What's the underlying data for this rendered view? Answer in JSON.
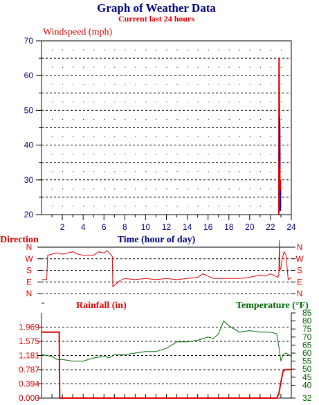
{
  "page": {
    "title": "Graph of Weather Data",
    "subtitle": "Current last 24 hours"
  },
  "colors": {
    "navy": "#000080",
    "red": "#dd0000",
    "green": "#006600",
    "purple": "#660066",
    "grid": "#000000"
  },
  "chart_data": [
    {
      "type": "line",
      "name": "windspeed",
      "ylabel": "Windspeed (mph)",
      "xlabel": "Time (hour of day)",
      "xlim": [
        0,
        24
      ],
      "ylim": [
        20,
        70
      ],
      "xticks": [
        2,
        4,
        6,
        8,
        10,
        12,
        14,
        16,
        18,
        20,
        22,
        24
      ],
      "yticks": [
        20,
        30,
        40,
        50,
        60,
        70
      ],
      "grid": true,
      "series": [
        {
          "color": "#dd0000",
          "x": [
            22.8,
            22.82,
            22.86,
            22.9,
            22.92,
            22.96
          ],
          "y": [
            20,
            65,
            48,
            30,
            25,
            30
          ]
        },
        {
          "color": "#660066",
          "x": [
            22.84,
            22.86,
            22.88,
            22.9
          ],
          "y": [
            35,
            48,
            46,
            33
          ]
        },
        {
          "color": "#0000cc",
          "x": [
            22.94,
            22.96
          ],
          "y": [
            21,
            27
          ]
        }
      ]
    },
    {
      "type": "line",
      "name": "direction",
      "ylabel": "Direction",
      "ytick_labels": [
        "N",
        "E",
        "S",
        "W",
        "N"
      ],
      "xlim": [
        0,
        24
      ],
      "grid": true,
      "series": [
        {
          "color": "#dd0000",
          "x": [
            0,
            0.5,
            0.6,
            1,
            1.5,
            2,
            2.5,
            3,
            3.5,
            4,
            4.5,
            5,
            5.5,
            6,
            6.3,
            6.6,
            6.8,
            6.85,
            7,
            7.5,
            8,
            9,
            10,
            11,
            12,
            13,
            14,
            15,
            15.5,
            16,
            16.5,
            17,
            18,
            19,
            20,
            21,
            21.5,
            22,
            22.5,
            22.7,
            22.8,
            22.85,
            22.9,
            23.0,
            23.1,
            23.3,
            23.5,
            23.6,
            23.7,
            24
          ],
          "y": [
            1.2,
            1.2,
            3.3,
            3.4,
            3.5,
            3.4,
            3.5,
            3.6,
            3.4,
            3.3,
            3.3,
            3.3,
            3.6,
            3.5,
            3.7,
            3.4,
            3.2,
            0.6,
            0.7,
            1.1,
            1.3,
            1.2,
            1.3,
            1.2,
            1.3,
            1.2,
            1.3,
            1.4,
            1.7,
            1.5,
            1.3,
            1.3,
            1.3,
            1.3,
            1.4,
            1.6,
            1.5,
            1.7,
            1.5,
            1.4,
            1.6,
            4.6,
            2.0,
            2.2,
            2.9,
            3.6,
            3.3,
            2.2,
            1.2,
            1.4
          ]
        }
      ]
    },
    {
      "type": "line",
      "name": "rainfall",
      "ylabel": "Rainfall (in)",
      "xlim": [
        0,
        24
      ],
      "ylim": [
        0,
        2.362
      ],
      "yticks": [
        0.0,
        0.394,
        0.787,
        1.181,
        1.575,
        1.969
      ],
      "ytick_labels": [
        "0.000",
        "0.394",
        "0.787",
        "1.181",
        "1.575",
        "1.969"
      ],
      "grid": true,
      "series": [
        {
          "color": "#dd0000",
          "x": [
            0,
            1.7,
            1.75,
            22.6,
            22.8,
            23.0,
            23.2,
            23.4,
            24
          ],
          "y": [
            1.83,
            1.83,
            0.0,
            0.0,
            0.12,
            0.45,
            0.74,
            0.79,
            0.79
          ]
        }
      ]
    },
    {
      "type": "line",
      "name": "temperature",
      "ylabel": "Temperature (°F)",
      "xlim": [
        0,
        24
      ],
      "ylim": [
        32,
        85
      ],
      "yticks": [
        32,
        40,
        45,
        50,
        55,
        60,
        65,
        70,
        75,
        80,
        85
      ],
      "ytick_labels": [
        "32",
        "40",
        "45",
        "50",
        "55",
        "60",
        "65",
        "70",
        "75",
        "80",
        "85"
      ],
      "series": [
        {
          "color": "#006600",
          "x": [
            0,
            1,
            1.5,
            2,
            3,
            4,
            5,
            6,
            6.5,
            7,
            8,
            9,
            10,
            11,
            12,
            13,
            14,
            15,
            15.5,
            16,
            16.5,
            17,
            17.5,
            18,
            19,
            20,
            21,
            22,
            22.6,
            22.8,
            23.0,
            23.2,
            23.5,
            24
          ],
          "y": [
            59,
            58,
            56,
            56,
            55,
            55,
            57,
            58,
            57,
            59,
            59,
            60,
            61,
            61,
            63,
            67,
            67,
            68,
            69,
            70,
            69,
            72,
            80,
            77,
            73,
            74,
            73,
            73,
            72,
            64,
            55,
            59,
            60,
            58
          ]
        }
      ]
    }
  ]
}
